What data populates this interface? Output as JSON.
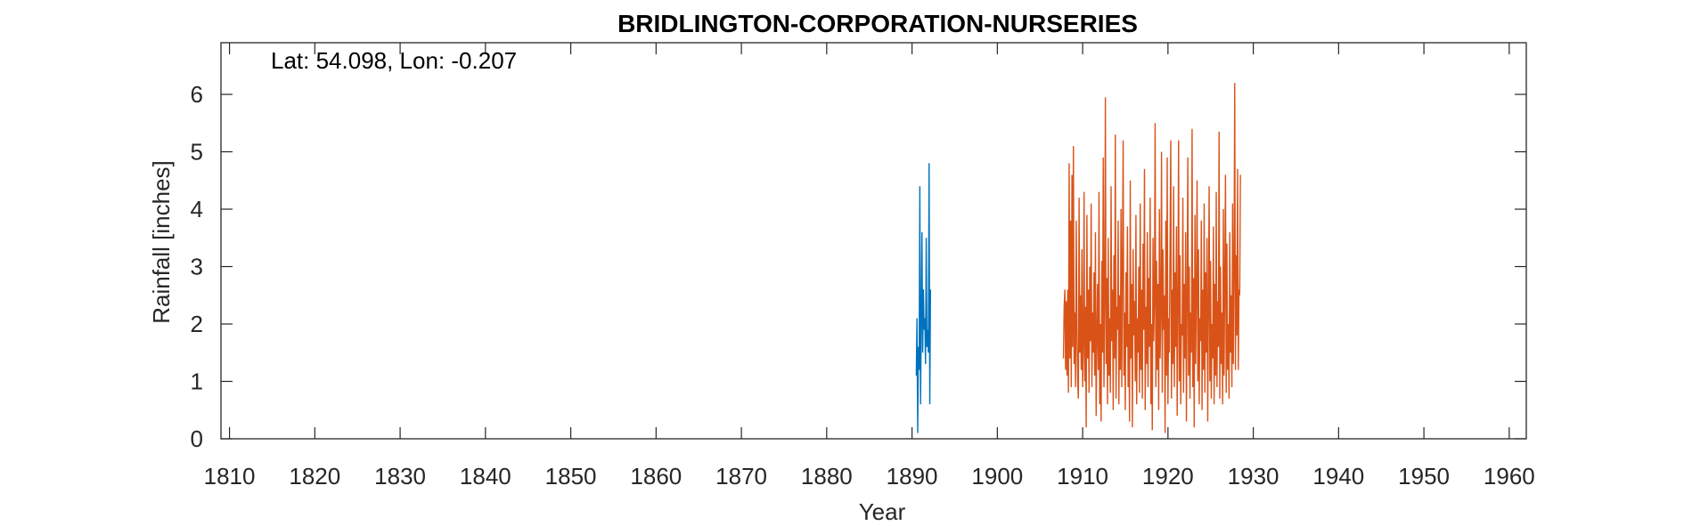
{
  "chart_data": {
    "type": "line",
    "title": "BRIDLINGTON-CORPORATION-NURSERIES",
    "annotation": "Lat: 54.098, Lon: -0.207",
    "xlabel": "Year",
    "ylabel": "Rainfall [inches]",
    "xlim": [
      1809,
      1962
    ],
    "ylim": [
      0,
      6.9
    ],
    "xticks": [
      1810,
      1820,
      1830,
      1840,
      1850,
      1860,
      1870,
      1880,
      1890,
      1900,
      1910,
      1920,
      1930,
      1940,
      1950,
      1960
    ],
    "yticks": [
      0,
      1,
      2,
      3,
      4,
      5,
      6
    ],
    "grid": false,
    "series": [
      {
        "color": "#0072BD",
        "start": 1890.5,
        "step": 0.0833,
        "values": [
          1.1,
          2.1,
          0.1,
          1.6,
          1.2,
          4.4,
          0.6,
          2.0,
          3.6,
          1.5,
          2.6,
          1.9,
          2.1,
          1.3,
          3.5,
          1.6,
          1.9,
          1.5,
          4.8,
          0.6,
          2.6
        ]
      },
      {
        "color": "#D95319",
        "start": 1907.75,
        "step": 0.0833,
        "values": [
          1.4,
          2.3,
          2.6,
          1.2,
          2.4,
          1.1,
          2.6,
          0.8,
          4.8,
          1.4,
          3.8,
          0.9,
          4.6,
          1.6,
          5.1,
          1.3,
          2.2,
          0.9,
          3.8,
          1.9,
          1.0,
          0.7,
          4.2,
          1.5,
          2.5,
          1.2,
          3.3,
          0.9,
          1.6,
          4.3,
          1.0,
          2.3,
          0.2,
          3.9,
          1.4,
          2.6,
          0.8,
          3.0,
          1.7,
          4.1,
          0.9,
          2.2,
          1.5,
          2.9,
          1.1,
          3.6,
          0.4,
          1.8,
          2.7,
          1.2,
          4.3,
          0.6,
          2.0,
          0.3,
          3.1,
          1.5,
          4.9,
          0.9,
          2.4,
          5.95,
          1.3,
          2.8,
          0.6,
          3.5,
          1.1,
          2.1,
          0.8,
          4.4,
          1.7,
          2.6,
          0.5,
          3.2,
          1.4,
          5.3,
          0.7,
          2.3,
          1.9,
          3.8,
          0.6,
          2.5,
          1.2,
          4.0,
          0.9,
          3.1,
          5.2,
          1.1,
          2.2,
          0.5,
          2.9,
          1.6,
          3.7,
          0.9,
          2.0,
          0.3,
          4.5,
          1.4,
          2.7,
          0.2,
          3.3,
          1.8,
          2.4,
          1.0,
          3.9,
          0.6,
          2.1,
          1.5,
          3.0,
          0.8,
          4.1,
          1.2,
          2.6,
          0.7,
          3.4,
          1.9,
          4.7,
          0.5,
          2.3,
          1.3,
          3.6,
          0.9,
          2.8,
          1.6,
          4.2,
          0.6,
          2.0,
          0.15,
          3.5,
          1.7,
          2.4,
          5.5,
          0.9,
          3.1,
          1.2,
          2.7,
          0.5,
          4.0,
          1.4,
          2.2,
          5.0,
          0.8,
          3.3,
          1.9,
          2.5,
          0.1,
          3.8,
          1.1,
          4.9,
          0.6,
          2.1,
          1.5,
          3.4,
          5.2,
          0.7,
          2.6,
          1.3,
          4.4,
          0.9,
          2.9,
          1.6,
          3.7,
          0.4,
          2.3,
          5.2,
          1.0,
          3.2,
          0.6,
          2.0,
          1.8,
          4.2,
          0.8,
          2.7,
          1.4,
          3.6,
          0.3,
          2.4,
          4.9,
          1.1,
          3.0,
          0.7,
          2.2,
          1.5,
          5.4,
          0.9,
          2.8,
          0.2,
          3.9,
          1.3,
          2.5,
          4.5,
          1.0,
          3.3,
          0.6,
          2.1,
          1.7,
          3.8,
          0.5,
          2.6,
          1.2,
          4.1,
          0.8,
          2.9,
          1.5,
          3.5,
          0.3,
          2.3,
          4.4,
          1.0,
          3.1,
          0.7,
          2.0,
          1.4,
          3.7,
          0.6,
          2.7,
          1.1,
          4.3,
          0.9,
          2.4,
          1.6,
          5.35,
          0.7,
          3.0,
          1.3,
          2.2,
          0.6,
          4.0,
          1.1,
          2.8,
          4.6,
          0.8,
          3.4,
          1.2,
          2.0,
          0.7,
          3.6,
          1.5,
          2.5,
          0.9,
          4.1,
          1.3,
          2.9,
          6.2,
          1.2,
          3.2,
          1.8,
          4.7,
          1.2,
          2.6,
          2.5,
          4.6
        ]
      }
    ]
  }
}
